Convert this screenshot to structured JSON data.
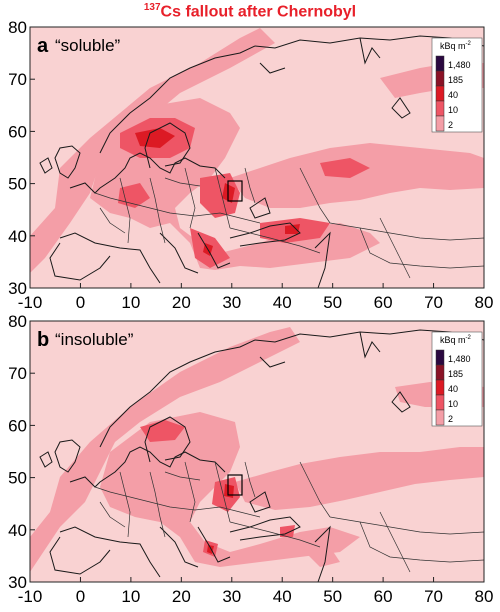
{
  "title": {
    "superscript": "137",
    "text": "Cs fallout after Chernobyl"
  },
  "colors": {
    "background_class": "#f9d2d2",
    "class_2": "#f49ea7",
    "class_10": "#ee5565",
    "class_40": "#dc1a24",
    "class_185": "#8a1226",
    "class_1480": "#2a0840",
    "coast": "#1a1a1a",
    "border": "#333333"
  },
  "x_ticks": [
    "-10",
    "0",
    "10",
    "20",
    "30",
    "40",
    "50",
    "60",
    "70",
    "80"
  ],
  "y_ticks": [
    "30",
    "40",
    "50",
    "60",
    "70",
    "80"
  ],
  "legend": {
    "unit": "kBq m",
    "unit_exp": "-2",
    "values": [
      "1,480",
      "185",
      "40",
      "10",
      "2"
    ]
  },
  "panels": [
    {
      "letter": "a",
      "label": "“soluble”"
    },
    {
      "letter": "b",
      "label": "“insoluble”"
    }
  ]
}
